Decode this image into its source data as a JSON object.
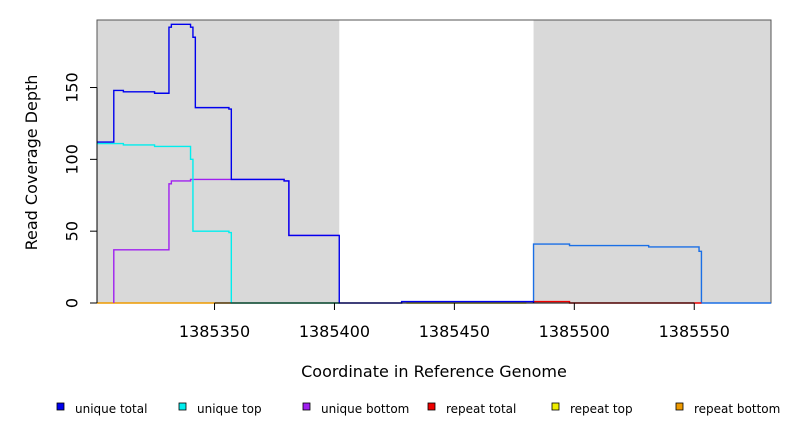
{
  "chart_data": {
    "type": "line",
    "step": true,
    "xlabel": "Coordinate in Reference Genome",
    "ylabel": "Read Coverage Depth",
    "xlim": [
      1385301,
      1385582
    ],
    "ylim": [
      0,
      197
    ],
    "x_ticks": [
      1385350,
      1385400,
      1385450,
      1385500,
      1385550
    ],
    "x_tick_labels": [
      "1385350",
      "1385400",
      "1385450",
      "1385500",
      "1385550"
    ],
    "y_ticks": [
      0,
      50,
      100,
      150
    ],
    "y_tick_labels": [
      "0",
      "50",
      "100",
      "150"
    ],
    "shaded_regions": [
      [
        1385301,
        1385402
      ],
      [
        1385483,
        1385582
      ]
    ],
    "shade_color": "#d9d9d9",
    "legend_position": "bottom",
    "series": [
      {
        "name": "unique total",
        "color": "#0000ee",
        "points": [
          [
            1385301,
            112
          ],
          [
            1385308,
            112
          ],
          [
            1385308,
            148
          ],
          [
            1385312,
            148
          ],
          [
            1385312,
            147
          ],
          [
            1385325,
            147
          ],
          [
            1385325,
            146
          ],
          [
            1385331,
            146
          ],
          [
            1385331,
            192
          ],
          [
            1385332,
            192
          ],
          [
            1385332,
            194
          ],
          [
            1385340,
            194
          ],
          [
            1385340,
            192
          ],
          [
            1385341,
            192
          ],
          [
            1385341,
            185
          ],
          [
            1385342,
            185
          ],
          [
            1385342,
            136
          ],
          [
            1385356,
            136
          ],
          [
            1385356,
            135
          ],
          [
            1385357,
            135
          ],
          [
            1385357,
            86
          ],
          [
            1385379,
            86
          ],
          [
            1385379,
            85
          ],
          [
            1385381,
            85
          ],
          [
            1385381,
            47
          ],
          [
            1385402,
            47
          ],
          [
            1385402,
            0
          ],
          [
            1385428,
            0
          ],
          [
            1385428,
            1
          ],
          [
            1385483,
            1
          ],
          [
            1385483,
            0
          ]
        ]
      },
      {
        "name": "unique top",
        "color": "#00eeee",
        "points": [
          [
            1385301,
            111
          ],
          [
            1385312,
            111
          ],
          [
            1385312,
            110
          ],
          [
            1385325,
            110
          ],
          [
            1385325,
            109
          ],
          [
            1385340,
            109
          ],
          [
            1385340,
            100
          ],
          [
            1385341,
            100
          ],
          [
            1385341,
            50
          ],
          [
            1385356,
            50
          ],
          [
            1385356,
            49
          ],
          [
            1385357,
            49
          ],
          [
            1385357,
            0
          ],
          [
            1385402,
            0
          ]
        ]
      },
      {
        "name": "unique bottom",
        "color": "#a020f0",
        "points": [
          [
            1385308,
            0
          ],
          [
            1385308,
            37
          ],
          [
            1385331,
            37
          ],
          [
            1385331,
            83
          ],
          [
            1385332,
            83
          ],
          [
            1385332,
            85
          ],
          [
            1385340,
            85
          ],
          [
            1385340,
            86
          ],
          [
            1385379,
            86
          ],
          [
            1385379,
            85
          ],
          [
            1385381,
            85
          ],
          [
            1385381,
            47
          ],
          [
            1385402,
            47
          ]
        ]
      },
      {
        "name": "repeat total",
        "color": "#ee0000",
        "points": [
          [
            1385483,
            1
          ],
          [
            1385498,
            1
          ],
          [
            1385498,
            0
          ],
          [
            1385553,
            0
          ]
        ]
      },
      {
        "name": "repeat top",
        "color": "#eeee00",
        "points": [
          [
            1385430,
            0
          ],
          [
            1385480,
            0
          ]
        ]
      },
      {
        "name": "repeat bottom",
        "color": "#ee9a00",
        "points": [
          [
            1385301,
            0
          ],
          [
            1385402,
            0
          ]
        ]
      },
      {
        "name": "",
        "color": "#1a6fe6",
        "points": [
          [
            1385483,
            1
          ],
          [
            1385483,
            41
          ],
          [
            1385498,
            41
          ],
          [
            1385498,
            40
          ],
          [
            1385531,
            40
          ],
          [
            1385531,
            39
          ],
          [
            1385552,
            39
          ],
          [
            1385552,
            36
          ],
          [
            1385553,
            36
          ],
          [
            1385553,
            0
          ],
          [
            1385582,
            0
          ]
        ]
      }
    ],
    "legend": [
      {
        "label": "unique total",
        "color": "#0000ee"
      },
      {
        "label": "unique top",
        "color": "#00eeee"
      },
      {
        "label": "unique bottom",
        "color": "#a020f0"
      },
      {
        "label": "repeat total",
        "color": "#ee0000"
      },
      {
        "label": "repeat top",
        "color": "#eeee00"
      },
      {
        "label": "repeat bottom",
        "color": "#ee9a00"
      }
    ]
  }
}
